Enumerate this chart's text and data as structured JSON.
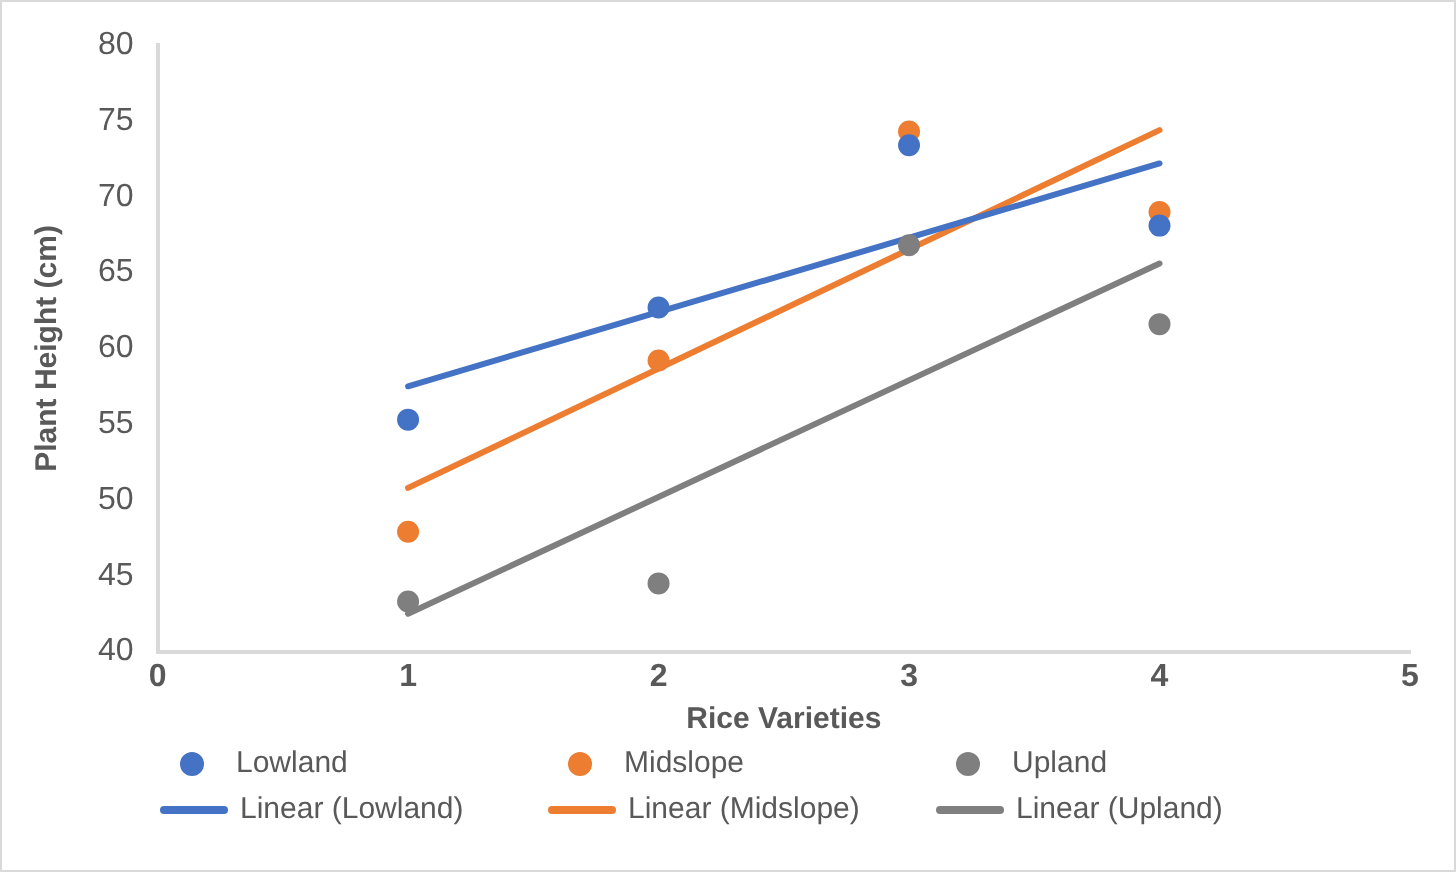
{
  "chart_data": {
    "type": "scatter",
    "xlabel": "Rice Varieties",
    "ylabel": "Plant Height (cm)",
    "xlim": [
      0,
      5
    ],
    "xticks": [
      0,
      1,
      2,
      3,
      4,
      5
    ],
    "ylim": [
      40,
      80
    ],
    "yticks": [
      40,
      45,
      50,
      55,
      60,
      65,
      70,
      75,
      80
    ],
    "grid": false,
    "legend": "bottom",
    "marker": "circle",
    "series": [
      {
        "name": "Lowland",
        "color": "#4472c4",
        "x": [
          1,
          2,
          3,
          4
        ],
        "values": [
          55.3,
          62.7,
          73.4,
          68.1
        ]
      },
      {
        "name": "Midslope",
        "color": "#ed7d31",
        "x": [
          1,
          2,
          3,
          4
        ],
        "values": [
          47.9,
          59.2,
          74.3,
          69.0
        ]
      },
      {
        "name": "Upland",
        "color": "#7f7f7f",
        "x": [
          1,
          2,
          3,
          4
        ],
        "values": [
          43.3,
          44.5,
          66.8,
          61.6
        ]
      },
      {
        "name": "Linear (Lowland)",
        "type": "line",
        "marker": "none",
        "color": "#4472c4",
        "x": [
          1,
          4
        ],
        "values": [
          57.5,
          72.2
        ]
      },
      {
        "name": "Linear (Midslope)",
        "type": "line",
        "marker": "none",
        "color": "#ed7d31",
        "x": [
          1,
          4
        ],
        "values": [
          50.8,
          74.4
        ]
      },
      {
        "name": "Linear (Upland)",
        "type": "line",
        "marker": "none",
        "color": "#7f7f7f",
        "x": [
          1,
          4
        ],
        "values": [
          42.5,
          65.6
        ]
      }
    ]
  }
}
